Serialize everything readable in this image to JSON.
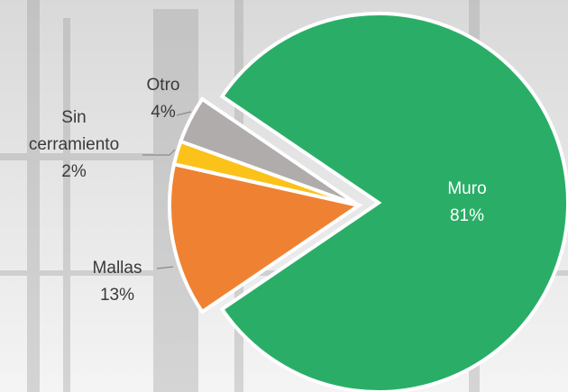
{
  "chart_data": {
    "type": "pie",
    "categories": [
      "Muro",
      "Mallas",
      "Sin cerramiento",
      "Otro"
    ],
    "values": [
      81,
      13,
      2,
      4
    ],
    "value_labels": [
      "81%",
      "13%",
      "2%",
      "4%"
    ],
    "colors": [
      "#2aae67",
      "#ef8232",
      "#fbc21a",
      "#b0acab"
    ]
  }
}
